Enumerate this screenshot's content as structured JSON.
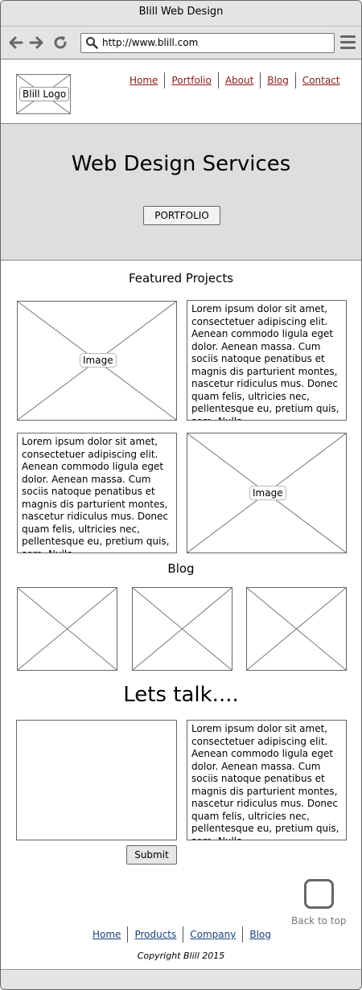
{
  "window": {
    "title": "Blill Web Design"
  },
  "browser": {
    "url": "http://www.blill.com"
  },
  "header": {
    "logo_label": "Blill Logo",
    "nav": [
      "Home",
      "Portfolio",
      "About",
      "Blog",
      "Contact"
    ]
  },
  "hero": {
    "title": "Web Design Services",
    "button": "PORTFOLIO"
  },
  "featured": {
    "title": "Featured Projects",
    "image_label": "Image",
    "lorem": "Lorem ipsum dolor sit amet, consectetuer adipiscing elit. Aenean commodo ligula eget dolor. Aenean massa. Cum sociis natoque penatibus et magnis dis parturient montes, nascetur ridiculus mus. Donec quam felis, ultricies nec, pellentesque eu, pretium quis, sem. Nulla"
  },
  "blog": {
    "title": "Blog"
  },
  "contact": {
    "title": "Lets talk....",
    "lorem": "Lorem ipsum dolor sit amet, consectetuer adipiscing elit. Aenean commodo ligula eget dolor. Aenean massa. Cum sociis natoque penatibus et magnis dis parturient montes, nascetur ridiculus mus. Donec quam felis, ultricies nec, pellentesque eu, pretium quis, sem. Nulla",
    "submit": "Submit"
  },
  "back_to_top": "Back to top",
  "footer": {
    "nav": [
      "Home",
      "Products",
      "Company",
      "Blog"
    ],
    "copyright": "Copyright Blill 2015"
  }
}
